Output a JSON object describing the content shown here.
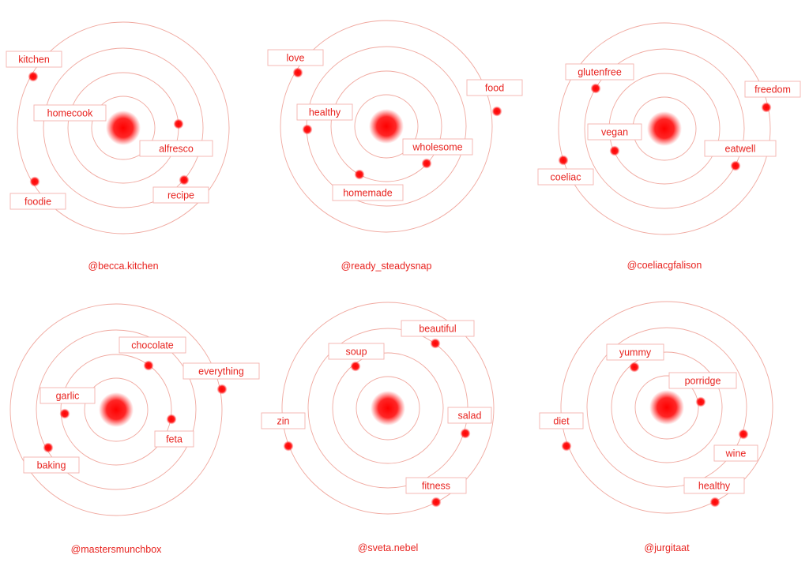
{
  "colors": {
    "accent": "#ff1a1a",
    "ring": "#f0a9a0",
    "label_border": "#f3b3ad",
    "text": "#e8231f"
  },
  "diagrams": [
    {
      "handle": "@becca.kitchen",
      "tags": [
        {
          "word": "kitchen"
        },
        {
          "word": "homecook"
        },
        {
          "word": "alfresco"
        },
        {
          "word": "recipe"
        },
        {
          "word": "foodie"
        }
      ]
    },
    {
      "handle": "@ready_steadysnap",
      "tags": [
        {
          "word": "love"
        },
        {
          "word": "food"
        },
        {
          "word": "healthy"
        },
        {
          "word": "wholesome"
        },
        {
          "word": "homemade"
        }
      ]
    },
    {
      "handle": "@coeliacgfalison",
      "tags": [
        {
          "word": "glutenfree"
        },
        {
          "word": "freedom"
        },
        {
          "word": "vegan"
        },
        {
          "word": "eatwell"
        },
        {
          "word": "coeliac"
        }
      ]
    },
    {
      "handle": "@mastersmunchbox",
      "tags": [
        {
          "word": "chocolate"
        },
        {
          "word": "everything"
        },
        {
          "word": "garlic"
        },
        {
          "word": "feta"
        },
        {
          "word": "baking"
        }
      ]
    },
    {
      "handle": "@sveta.nebel",
      "tags": [
        {
          "word": "beautiful"
        },
        {
          "word": "soup"
        },
        {
          "word": "salad"
        },
        {
          "word": "zin"
        },
        {
          "word": "fitness"
        }
      ]
    },
    {
      "handle": "@jurgitaat",
      "tags": [
        {
          "word": "yummy"
        },
        {
          "word": "porridge"
        },
        {
          "word": "diet"
        },
        {
          "word": "wine"
        },
        {
          "word": "healthy"
        }
      ]
    }
  ]
}
